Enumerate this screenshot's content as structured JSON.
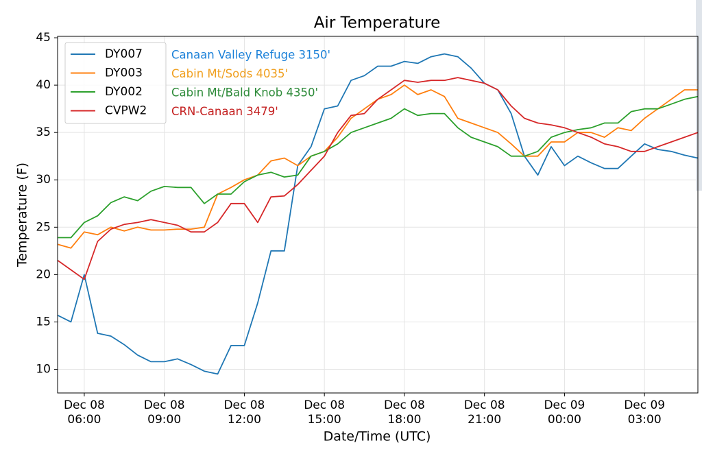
{
  "chart_data": {
    "type": "line",
    "title": "Air Temperature",
    "x_label": "Date/Time (UTC)",
    "y_label": "Temperature (F)",
    "x": [
      "Dec 08 05:00",
      "Dec 08 05:30",
      "Dec 08 06:00",
      "Dec 08 06:30",
      "Dec 08 07:00",
      "Dec 08 07:30",
      "Dec 08 08:00",
      "Dec 08 08:30",
      "Dec 08 09:00",
      "Dec 08 09:30",
      "Dec 08 10:00",
      "Dec 08 10:30",
      "Dec 08 11:00",
      "Dec 08 11:30",
      "Dec 08 12:00",
      "Dec 08 12:30",
      "Dec 08 13:00",
      "Dec 08 13:30",
      "Dec 08 14:00",
      "Dec 08 14:30",
      "Dec 08 15:00",
      "Dec 08 15:30",
      "Dec 08 16:00",
      "Dec 08 16:30",
      "Dec 08 17:00",
      "Dec 08 17:30",
      "Dec 08 18:00",
      "Dec 08 18:30",
      "Dec 08 19:00",
      "Dec 08 19:30",
      "Dec 08 20:00",
      "Dec 08 20:30",
      "Dec 08 21:00",
      "Dec 08 21:30",
      "Dec 08 22:00",
      "Dec 08 22:30",
      "Dec 08 23:00",
      "Dec 08 23:30",
      "Dec 09 00:00",
      "Dec 09 00:30",
      "Dec 09 01:00",
      "Dec 09 01:30",
      "Dec 09 02:00",
      "Dec 09 02:30",
      "Dec 09 03:00",
      "Dec 09 03:30",
      "Dec 09 04:00",
      "Dec 09 04:30",
      "Dec 09 05:00"
    ],
    "series": [
      {
        "name": "DY007",
        "color": "#1f77b4",
        "values": [
          15.7,
          15.0,
          20,
          13.8,
          13.5,
          12.6,
          11.5,
          10.8,
          10.8,
          11.1,
          10.5,
          9.8,
          9.5,
          12.5,
          12.5,
          17,
          22.5,
          22.5,
          31.5,
          33.5,
          37.5,
          37.8,
          40.5,
          41,
          42,
          42,
          42.5,
          42.3,
          43,
          43.3,
          43,
          41.8,
          40.2,
          39.5,
          37,
          32.5,
          30.5,
          33.5,
          31.5,
          32.5,
          31.8,
          31.2,
          31.2,
          32.5,
          33.8,
          33.2,
          33.0,
          32.6,
          32.3
        ]
      },
      {
        "name": "DY003",
        "color": "#ff7f0e",
        "values": [
          23.2,
          22.8,
          24.5,
          24.2,
          25.0,
          24.6,
          25.0,
          24.7,
          24.7,
          24.8,
          24.8,
          25.0,
          28.5,
          29.2,
          30,
          30.5,
          32,
          32.3,
          31.5,
          32.5,
          33,
          34.5,
          36.5,
          37.5,
          38.5,
          39,
          40,
          39,
          39.5,
          38.8,
          36.5,
          36,
          35.5,
          35,
          33.8,
          32.5,
          32.5,
          34,
          34,
          35,
          35,
          34.5,
          35.5,
          35.2,
          36.5,
          37.5,
          38.5,
          39.5,
          39.5
        ]
      },
      {
        "name": "DY002",
        "color": "#2ca02c",
        "values": [
          23.9,
          23.9,
          25.5,
          26.2,
          27.6,
          28.2,
          27.8,
          28.8,
          29.3,
          29.2,
          29.2,
          27.5,
          28.5,
          28.5,
          29.8,
          30.5,
          30.8,
          30.3,
          30.5,
          32.5,
          33,
          33.8,
          35,
          35.5,
          36,
          36.5,
          37.5,
          36.8,
          37,
          37,
          35.5,
          34.5,
          34,
          33.5,
          32.5,
          32.5,
          33,
          34.5,
          35,
          35.3,
          35.5,
          36,
          36,
          37.2,
          37.5,
          37.5,
          38,
          38.5,
          38.8
        ]
      },
      {
        "name": "CVPW2",
        "color": "#d62728",
        "values": [
          21.5,
          20.5,
          19.5,
          23.5,
          24.8,
          25.3,
          25.5,
          25.8,
          25.5,
          25.2,
          24.5,
          24.5,
          25.5,
          27.5,
          27.5,
          25.5,
          28.2,
          28.3,
          29.5,
          31,
          32.5,
          35,
          36.8,
          37,
          38.5,
          39.5,
          40.5,
          40.3,
          40.5,
          40.5,
          40.8,
          40.5,
          40.2,
          39.5,
          37.8,
          36.5,
          36,
          35.8,
          35.5,
          35,
          34.5,
          33.8,
          33.5,
          33,
          33,
          33.5,
          34,
          34.5,
          35
        ]
      }
    ],
    "annotations": [
      {
        "text": "Canaan Valley Refuge 3150'",
        "color": "#1a80d8"
      },
      {
        "text": "Cabin Mt/Sods 4035'",
        "color": "#f0a020"
      },
      {
        "text": "Cabin Mt/Bald Knob 4350'",
        "color": "#2e8b3a"
      },
      {
        "text": "CRN-Canaan 3479'",
        "color": "#c42020"
      }
    ],
    "xlim": [
      "Dec 08 05:00",
      "Dec 09 05:00"
    ],
    "xticks": [
      {
        "value": "Dec 08 06:00",
        "label": [
          "Dec 08",
          "06:00"
        ]
      },
      {
        "value": "Dec 08 09:00",
        "label": [
          "Dec 08",
          "09:00"
        ]
      },
      {
        "value": "Dec 08 12:00",
        "label": [
          "Dec 08",
          "12:00"
        ]
      },
      {
        "value": "Dec 08 15:00",
        "label": [
          "Dec 08",
          "15:00"
        ]
      },
      {
        "value": "Dec 08 18:00",
        "label": [
          "Dec 08",
          "18:00"
        ]
      },
      {
        "value": "Dec 08 21:00",
        "label": [
          "Dec 08",
          "21:00"
        ]
      },
      {
        "value": "Dec 09 00:00",
        "label": [
          "Dec 09",
          "00:00"
        ]
      },
      {
        "value": "Dec 09 03:00",
        "label": [
          "Dec 09",
          "03:00"
        ]
      }
    ],
    "ylim": [
      7.5,
      45.15
    ],
    "yticks": [
      10,
      15,
      20,
      25,
      30,
      35,
      40,
      45
    ],
    "grid": true,
    "legend": "upper left"
  }
}
